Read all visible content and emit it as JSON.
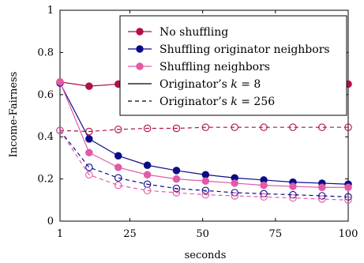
{
  "chart_data": {
    "type": "line",
    "title": "",
    "xlabel": "seconds",
    "ylabel": "Income-Fairness",
    "xlim": [
      1,
      100
    ],
    "ylim": [
      0,
      1
    ],
    "x_tick_labels": [
      "1",
      "25",
      "50",
      "75",
      "100"
    ],
    "y_tick_labels": [
      "0",
      "0.2",
      "0.4",
      "0.6",
      "0.8",
      "1"
    ],
    "x": [
      1,
      11,
      21,
      31,
      41,
      51,
      61,
      71,
      81,
      91,
      100
    ],
    "legend": {
      "position": "top-right",
      "entries": [
        {
          "label": "No shuffling",
          "style": "marker",
          "color": "#b10f4a"
        },
        {
          "label": "Shuffling originator neighbors",
          "style": "marker",
          "color": "#0b0b8a"
        },
        {
          "label": "Shuffling neighbors",
          "style": "marker",
          "color": "#e35aa8"
        },
        {
          "label": "Originator’s ",
          "math": "k = 8",
          "style": "solid-line",
          "color": "#000000"
        },
        {
          "label": "Originator’s ",
          "math": "k = 256",
          "style": "dashed-line",
          "color": "#000000"
        }
      ]
    },
    "series": [
      {
        "group": "No shuffling",
        "k": 8,
        "line": "solid",
        "marker": "filled",
        "color": "#b10f4a",
        "values": [
          0.66,
          0.64,
          0.65,
          0.65,
          0.65,
          0.65,
          0.65,
          0.65,
          0.65,
          0.65,
          0.65
        ]
      },
      {
        "group": "No shuffling",
        "k": 256,
        "line": "dashed",
        "marker": "open",
        "color": "#b10f4a",
        "values": [
          0.43,
          0.425,
          0.435,
          0.44,
          0.44,
          0.445,
          0.445,
          0.445,
          0.445,
          0.445,
          0.445
        ]
      },
      {
        "group": "Shuffling originator neighbors",
        "k": 8,
        "line": "solid",
        "marker": "filled",
        "color": "#0b0b8a",
        "values": [
          0.655,
          0.39,
          0.31,
          0.265,
          0.24,
          0.22,
          0.205,
          0.195,
          0.185,
          0.18,
          0.175
        ]
      },
      {
        "group": "Shuffling originator neighbors",
        "k": 256,
        "line": "dashed",
        "marker": "open",
        "color": "#0b0b8a",
        "values": [
          0.43,
          0.255,
          0.205,
          0.175,
          0.155,
          0.145,
          0.135,
          0.13,
          0.125,
          0.12,
          0.115
        ]
      },
      {
        "group": "Shuffling neighbors",
        "k": 8,
        "line": "solid",
        "marker": "filled",
        "color": "#e35aa8",
        "values": [
          0.66,
          0.325,
          0.255,
          0.22,
          0.2,
          0.19,
          0.18,
          0.17,
          0.165,
          0.16,
          0.16
        ]
      },
      {
        "group": "Shuffling neighbors",
        "k": 256,
        "line": "dashed",
        "marker": "open",
        "color": "#e35aa8",
        "values": [
          0.43,
          0.22,
          0.17,
          0.145,
          0.135,
          0.125,
          0.12,
          0.115,
          0.11,
          0.105,
          0.1
        ]
      }
    ]
  }
}
